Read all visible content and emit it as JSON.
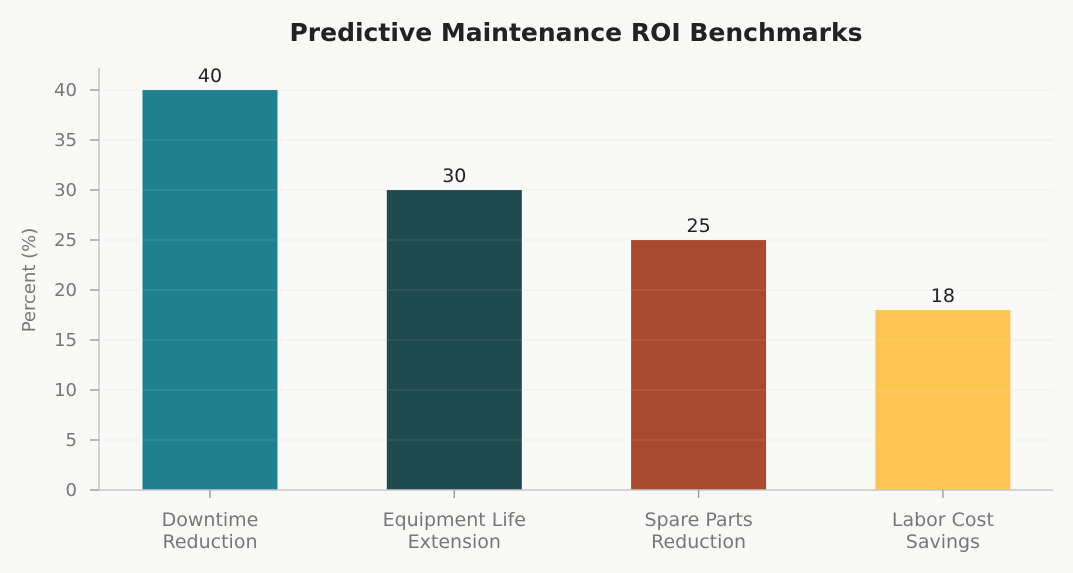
{
  "chart_data": {
    "type": "bar",
    "title": "Predictive Maintenance ROI Benchmarks",
    "xlabel": "",
    "ylabel": "Percent (%)",
    "ylim": [
      0,
      42
    ],
    "yticks": [
      0,
      5,
      10,
      15,
      20,
      25,
      30,
      35,
      40
    ],
    "categories": [
      [
        "Downtime",
        "Reduction"
      ],
      [
        "Equipment Life",
        "Extension"
      ],
      [
        "Spare Parts",
        "Reduction"
      ],
      [
        "Labor Cost",
        "Savings"
      ]
    ],
    "values": [
      40,
      30,
      25,
      18
    ],
    "data_labels": [
      "40",
      "30",
      "25",
      "18"
    ],
    "colors": [
      "#20808d",
      "#1f4a4f",
      "#a84b2f",
      "#ffc553"
    ],
    "grid": true,
    "legend": "none"
  }
}
